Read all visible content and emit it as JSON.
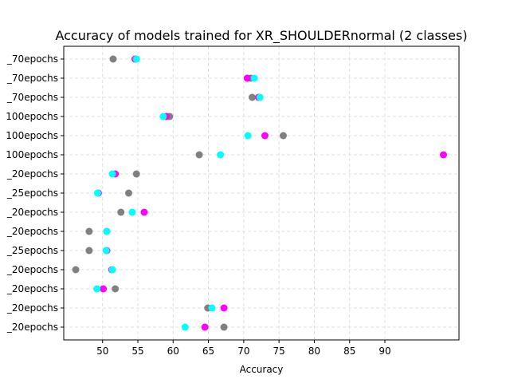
{
  "chart_data": {
    "type": "scatter",
    "title": "Accuracy of models trained for XR_SHOULDERnormal (2 classes)",
    "xlabel": "Accuracy",
    "ylabel": "",
    "xlim": [
      44.5,
      100.5
    ],
    "xticks": [
      50,
      55,
      60,
      65,
      70,
      75,
      80,
      85,
      90
    ],
    "grid": true,
    "categories": [
      "_70epochs",
      "_70epochs",
      "_70epochs",
      "100epochs",
      "100epochs",
      "100epochs",
      "_20epochs",
      "_25epochs",
      "_20epochs",
      "_20epochs",
      "_25epochs",
      "_20epochs",
      "_20epochs",
      "_20epochs",
      "_20epochs"
    ],
    "series": [
      {
        "name": "gray",
        "color": "#808080",
        "values": [
          51.5,
          71.0,
          71.2,
          59.5,
          75.6,
          63.7,
          54.8,
          53.7,
          52.6,
          48.1,
          48.1,
          46.2,
          51.8,
          64.9,
          67.2
        ]
      },
      {
        "name": "magenta",
        "color": "#ff00ff",
        "values": [
          54.6,
          70.5,
          72.1,
          59.0,
          73.0,
          98.3,
          51.8,
          49.4,
          55.9,
          50.6,
          50.6,
          51.3,
          50.1,
          67.2,
          64.5
        ]
      },
      {
        "name": "cyan",
        "color": "#00ffff",
        "values": [
          54.8,
          71.5,
          72.3,
          58.6,
          70.6,
          66.7,
          51.4,
          49.3,
          54.2,
          50.6,
          50.5,
          51.4,
          49.2,
          65.5,
          61.7
        ]
      }
    ]
  }
}
